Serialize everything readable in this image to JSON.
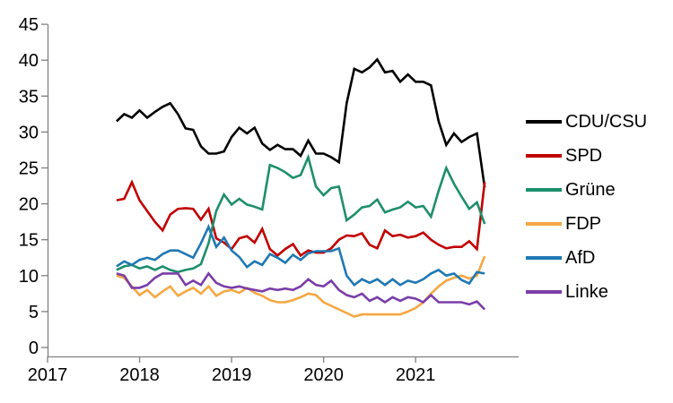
{
  "chart_data": {
    "type": "line",
    "title": "",
    "xlabel": "",
    "ylabel": "",
    "grid": false,
    "legend_position": "right",
    "xlim": [
      2017,
      2022.12
    ],
    "ylim": [
      0,
      45
    ],
    "x_ticks": [
      "2017",
      "2018",
      "2019",
      "2020",
      "2021"
    ],
    "x_tick_values": [
      2017,
      2018,
      2019,
      2020,
      2021
    ],
    "y_ticks": [
      "0",
      "5",
      "10",
      "15",
      "20",
      "25",
      "30",
      "35",
      "40",
      "45"
    ],
    "y_tick_values": [
      0,
      5,
      10,
      15,
      20,
      25,
      30,
      35,
      40,
      45
    ],
    "axis_color": "#808080",
    "label_color": "#000000",
    "x": [
      2017.75,
      2017.833,
      2017.917,
      2018,
      2018.083,
      2018.167,
      2018.25,
      2018.333,
      2018.417,
      2018.5,
      2018.583,
      2018.667,
      2018.75,
      2018.833,
      2018.917,
      2019,
      2019.083,
      2019.167,
      2019.25,
      2019.333,
      2019.417,
      2019.5,
      2019.583,
      2019.667,
      2019.75,
      2019.833,
      2019.917,
      2020,
      2020.083,
      2020.167,
      2020.25,
      2020.333,
      2020.417,
      2020.5,
      2020.583,
      2020.667,
      2020.75,
      2020.833,
      2020.917,
      2021,
      2021.083,
      2021.167,
      2021.25,
      2021.333,
      2021.417,
      2021.5,
      2021.583,
      2021.667,
      2021.75
    ],
    "series": [
      {
        "name": "CDU/CSU",
        "slug": "cdu-csu",
        "color": "#000000",
        "values": [
          31.5,
          32.5,
          32,
          33,
          32,
          32.8,
          33.5,
          34,
          32.5,
          30.5,
          30.3,
          28,
          27,
          27,
          27.3,
          29.3,
          30.6,
          29.8,
          30.6,
          28.4,
          27.5,
          28.2,
          27.6,
          27.6,
          26.7,
          28.8,
          27,
          27,
          26.5,
          25.8,
          34,
          38.8,
          38.3,
          39,
          40.1,
          38.3,
          38.5,
          37,
          38,
          37,
          37,
          36.5,
          31.5,
          28.2,
          29.8,
          28.6,
          29.3,
          29.8,
          22.3
        ]
      },
      {
        "name": "SPD",
        "slug": "spd",
        "color": "#C00000",
        "values": [
          20.5,
          20.7,
          23,
          20.5,
          19,
          17.5,
          16.3,
          18.5,
          19.3,
          19.4,
          19.3,
          17.8,
          19.3,
          15.2,
          14.6,
          13.7,
          15.2,
          15.5,
          14.6,
          16.5,
          13.7,
          12.8,
          13.7,
          14.4,
          12.8,
          13.5,
          13.2,
          13.2,
          13.8,
          15,
          15.6,
          15.5,
          15.9,
          14.3,
          13.8,
          16.3,
          15.5,
          15.7,
          15.3,
          15.5,
          16,
          15,
          14.3,
          13.8,
          14,
          14,
          14.8,
          13.7,
          23
        ]
      },
      {
        "name": "Grüne",
        "slug": "gruene",
        "color": "#1E8E6B",
        "values": [
          10.8,
          11.3,
          11.5,
          11,
          11.3,
          10.8,
          11.3,
          10.8,
          10.5,
          10.8,
          11,
          11.6,
          14.5,
          19,
          21.3,
          19.9,
          20.7,
          19.9,
          19.6,
          19.2,
          25.4,
          25,
          24.4,
          23.6,
          24,
          26.5,
          22.4,
          21.2,
          22.2,
          22.4,
          17.7,
          18.5,
          19.5,
          19.7,
          20.6,
          18.8,
          19.2,
          19.5,
          20.3,
          19.5,
          19.7,
          18.2,
          21.8,
          25,
          22.8,
          21,
          19.3,
          20.2,
          17.2
        ]
      },
      {
        "name": "FDP",
        "slug": "fdp",
        "color": "#F5A742",
        "values": [
          10,
          9.7,
          8.5,
          7.3,
          8,
          7,
          7.8,
          8.5,
          7.2,
          7.8,
          8.3,
          7.5,
          8.5,
          7.2,
          7.8,
          8,
          7.6,
          8.3,
          7.6,
          7.2,
          6.6,
          6.3,
          6.3,
          6.6,
          7,
          7.5,
          7.3,
          6.3,
          5.8,
          5.3,
          4.8,
          4.3,
          4.6,
          4.6,
          4.6,
          4.6,
          4.6,
          4.6,
          5,
          5.5,
          6.3,
          7.5,
          8.5,
          9.3,
          9.7,
          10,
          9.6,
          10,
          12.7
        ]
      },
      {
        "name": "AfD",
        "slug": "afd",
        "color": "#1F78B4",
        "values": [
          11.3,
          12,
          11.5,
          12.2,
          12.5,
          12.2,
          13,
          13.5,
          13.5,
          13,
          12.5,
          14.5,
          16.8,
          14,
          15.3,
          13.5,
          12.6,
          11.2,
          12,
          11.5,
          13,
          12.5,
          11.8,
          12.9,
          12.2,
          13.1,
          13.4,
          13.4,
          13.4,
          13.8,
          10,
          8.7,
          9.5,
          9,
          9.5,
          8.7,
          9.5,
          8.7,
          9.3,
          9,
          9.5,
          10.3,
          10.8,
          10,
          10.3,
          9.4,
          8.9,
          10.5,
          10.3
        ]
      },
      {
        "name": "Linke",
        "slug": "linke",
        "color": "#7A3DA8",
        "values": [
          10.3,
          10,
          8.3,
          8.3,
          8.7,
          9.7,
          10.3,
          10.3,
          10.3,
          8.7,
          9.3,
          8.7,
          10.3,
          9,
          8.5,
          8.3,
          8.5,
          8.2,
          8,
          7.8,
          8.2,
          8,
          8.2,
          8,
          8.5,
          9.5,
          8.7,
          8.5,
          9.3,
          8,
          7.3,
          7,
          7.5,
          6.5,
          7,
          6.3,
          7,
          6.5,
          7,
          6.8,
          6.3,
          7.3,
          6.3,
          6.3,
          6.3,
          6.3,
          6,
          6.4,
          5.3
        ]
      }
    ]
  }
}
